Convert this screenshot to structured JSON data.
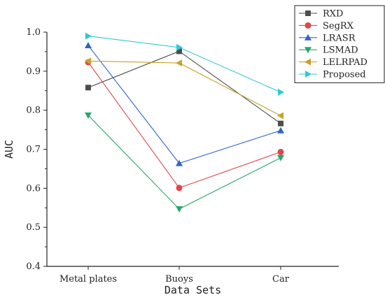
{
  "chart_data": {
    "type": "line",
    "title": "",
    "xlabel": "Data Sets",
    "ylabel": "AUC",
    "categories": [
      "Metal plates",
      "Buoys",
      "Car"
    ],
    "ylim": [
      0.4,
      1.0
    ],
    "yticks": [
      "0.4",
      "0.5",
      "0.6",
      "0.7",
      "0.8",
      "0.9",
      "1.0"
    ],
    "grid": false,
    "legend_position": "top-right",
    "series": [
      {
        "name": "RXD",
        "values": [
          0.858,
          0.951,
          0.766
        ],
        "color": "#4d4d4d",
        "marker": "square"
      },
      {
        "name": "SegRX",
        "values": [
          0.923,
          0.601,
          0.693
        ],
        "color": "#e0474c",
        "marker": "circle"
      },
      {
        "name": "LRASR",
        "values": [
          0.966,
          0.664,
          0.748
        ],
        "color": "#2f64c8",
        "marker": "triangle-up"
      },
      {
        "name": "LSMAD",
        "values": [
          0.787,
          0.547,
          0.678
        ],
        "color": "#27a86a",
        "marker": "triangle-down"
      },
      {
        "name": "LELRPAD",
        "values": [
          0.926,
          0.921,
          0.786
        ],
        "color": "#c9a227",
        "marker": "triangle-left"
      },
      {
        "name": "Proposed",
        "values": [
          0.99,
          0.961,
          0.846
        ],
        "color": "#2ec8d8",
        "marker": "triangle-right"
      }
    ]
  }
}
